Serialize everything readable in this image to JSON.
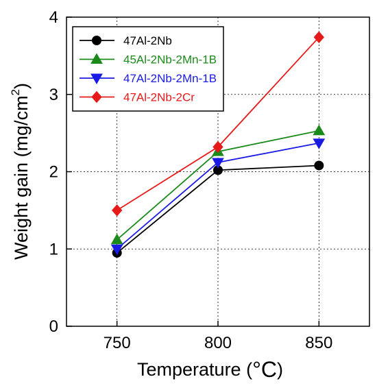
{
  "chart_data": {
    "type": "line",
    "x": [
      750,
      800,
      850
    ],
    "xlim": [
      725,
      875
    ],
    "ylim": [
      0,
      4
    ],
    "x_ticks": [
      "750",
      "800",
      "850"
    ],
    "y_ticks": [
      "0",
      "1",
      "2",
      "3",
      "4"
    ],
    "xlabel": "Temperature (",
    "xlabel_unit": "°C",
    "xlabel_close": ")",
    "ylabel": "Weight gain (mg/cm",
    "ylabel_sup": "2",
    "ylabel_close": ")",
    "grid": true,
    "legend_position": "top-left",
    "series": [
      {
        "name": "47Al-2Nb",
        "values": [
          0.95,
          2.02,
          2.08
        ],
        "color": "#000000",
        "marker": "circle"
      },
      {
        "name": "45Al-2Nb-2Mn-1B",
        "values": [
          1.12,
          2.26,
          2.53
        ],
        "color": "#1a8a1a",
        "marker": "triangle-up"
      },
      {
        "name": "47Al-2Nb-2Mn-1B",
        "values": [
          1.0,
          2.12,
          2.37
        ],
        "color": "#1a1ae6",
        "marker": "triangle-down"
      },
      {
        "name": "47Al-2Nb-2Cr",
        "values": [
          1.5,
          2.32,
          3.74
        ],
        "color": "#e61a1a",
        "marker": "diamond"
      }
    ]
  }
}
